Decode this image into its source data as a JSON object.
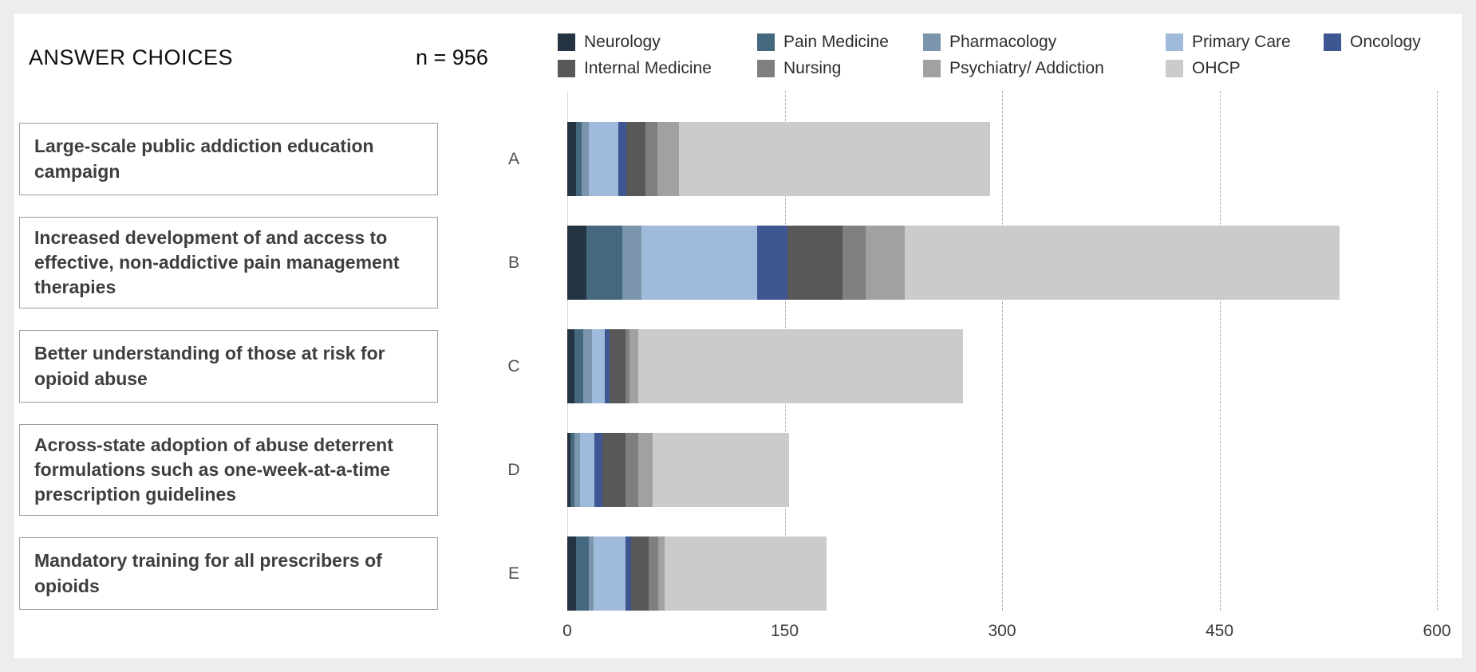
{
  "header": {
    "title": "ANSWER CHOICES",
    "n_value": "n = 956"
  },
  "legend": {
    "row1": [
      "Neurology",
      "Pain Medicine",
      "Pharmacology",
      "Primary Care",
      "Oncology"
    ],
    "row2": [
      "Internal Medicine",
      "Nursing",
      "Psychiatry/ Addiction",
      "OHCP"
    ]
  },
  "chart_data": {
    "type": "bar",
    "orientation": "horizontal",
    "stacked": true,
    "title": "ANSWER CHOICES",
    "n_label": "n = 956",
    "categories": [
      "A",
      "B",
      "C",
      "D",
      "E"
    ],
    "answers": [
      "Large-scale public addiction education campaign",
      "Increased development of and access to effective, non-addictive pain management therapies",
      "Better understanding of those at risk for opioid abuse",
      "Across-state adoption of abuse deterrent formulations such as one-week-at-a-time prescription guidelines",
      "Mandatory training for all prescribers of opioids"
    ],
    "series": [
      {
        "name": "Neurology",
        "color": "#243442",
        "values": [
          6,
          13,
          5,
          2,
          6
        ]
      },
      {
        "name": "Pain Medicine",
        "color": "#45687e",
        "values": [
          4,
          25,
          6,
          3,
          9
        ]
      },
      {
        "name": "Pharmacology",
        "color": "#7b96ac",
        "values": [
          5,
          13,
          6,
          4,
          3
        ]
      },
      {
        "name": "Primary Care",
        "color": "#9fbada",
        "values": [
          20,
          80,
          9,
          10,
          22
        ]
      },
      {
        "name": "Oncology",
        "color": "#3e5692",
        "values": [
          6,
          21,
          3,
          5,
          4
        ]
      },
      {
        "name": "Internal Medicine",
        "color": "#585858",
        "values": [
          13,
          38,
          11,
          16,
          12
        ]
      },
      {
        "name": "Nursing",
        "color": "#7f7f7f",
        "values": [
          8,
          16,
          3,
          9,
          7
        ]
      },
      {
        "name": "Psychiatry/ Addiction",
        "color": "#a1a1a1",
        "values": [
          15,
          27,
          6,
          10,
          4
        ]
      },
      {
        "name": "OHCP",
        "color": "#cbcbcb",
        "values": [
          215,
          300,
          224,
          94,
          112
        ]
      }
    ],
    "totals": [
      292,
      533,
      273,
      153,
      179
    ],
    "xlim": [
      0,
      600
    ],
    "xticks": [
      "0",
      "150",
      "300",
      "450",
      "600"
    ],
    "grid": "vertical-dashed",
    "legend_position": "top"
  }
}
